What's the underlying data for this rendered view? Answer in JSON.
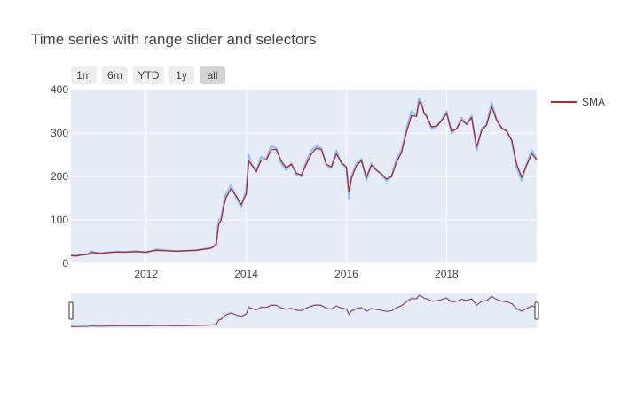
{
  "chart": {
    "title": "Time series with range slider and selectors",
    "buttons": [
      {
        "label": "1m",
        "active": false
      },
      {
        "label": "6m",
        "active": false
      },
      {
        "label": "YTD",
        "active": false
      },
      {
        "label": "1y",
        "active": false
      },
      {
        "label": "all",
        "active": true
      }
    ],
    "legend": [
      {
        "label": "SMA",
        "color": "#b2282f"
      }
    ]
  },
  "colors": {
    "plot_bg": "#e5ecf6",
    "grid": "#ffffff",
    "price_line": "#8cc1f6",
    "sma_line": "#b2282f"
  },
  "chart_data": {
    "type": "line",
    "title": "Time series with range slider and selectors",
    "xlabel": "",
    "ylabel": "",
    "xlim": [
      2010.5,
      2019.8
    ],
    "ylim": [
      0,
      400
    ],
    "x_ticks": [
      "2012",
      "2014",
      "2016",
      "2018"
    ],
    "y_ticks": [
      "0",
      "100",
      "200",
      "300",
      "400"
    ],
    "grid": true,
    "legend_position": "top-right",
    "range_slider": true,
    "x": [
      2010.5,
      2010.6,
      2010.7,
      2010.8,
      2010.85,
      2010.9,
      2011.0,
      2011.1,
      2011.2,
      2011.4,
      2011.6,
      2011.8,
      2012.0,
      2012.2,
      2012.4,
      2012.6,
      2012.8,
      2013.0,
      2013.2,
      2013.3,
      2013.4,
      2013.45,
      2013.5,
      2013.55,
      2013.6,
      2013.7,
      2013.8,
      2013.9,
      2014.0,
      2014.05,
      2014.1,
      2014.2,
      2014.3,
      2014.4,
      2014.5,
      2014.6,
      2014.7,
      2014.8,
      2014.9,
      2015.0,
      2015.1,
      2015.2,
      2015.3,
      2015.4,
      2015.5,
      2015.6,
      2015.7,
      2015.8,
      2015.9,
      2016.0,
      2016.05,
      2016.1,
      2016.2,
      2016.3,
      2016.4,
      2016.5,
      2016.6,
      2016.7,
      2016.8,
      2016.9,
      2017.0,
      2017.1,
      2017.2,
      2017.3,
      2017.4,
      2017.45,
      2017.5,
      2017.55,
      2017.6,
      2017.7,
      2017.8,
      2017.9,
      2018.0,
      2018.1,
      2018.2,
      2018.3,
      2018.4,
      2018.5,
      2018.6,
      2018.7,
      2018.8,
      2018.9,
      2019.0,
      2019.1,
      2019.2,
      2019.3,
      2019.4,
      2019.5,
      2019.6,
      2019.7,
      2019.8
    ],
    "series": [
      {
        "name": "",
        "values": [
          18,
          17,
          20,
          21,
          22,
          28,
          24,
          23,
          25,
          27,
          26,
          28,
          25,
          32,
          30,
          28,
          29,
          30,
          34,
          36,
          45,
          100,
          105,
          140,
          160,
          180,
          150,
          130,
          170,
          250,
          230,
          210,
          245,
          240,
          270,
          265,
          230,
          215,
          230,
          205,
          200,
          235,
          260,
          270,
          265,
          225,
          220,
          260,
          230,
          220,
          150,
          200,
          230,
          240,
          190,
          230,
          215,
          205,
          190,
          200,
          240,
          260,
          310,
          350,
          340,
          380,
          370,
          345,
          340,
          310,
          315,
          330,
          350,
          300,
          310,
          335,
          320,
          340,
          260,
          310,
          320,
          370,
          330,
          310,
          305,
          280,
          220,
          190,
          230,
          260,
          240
        ]
      },
      {
        "name": "SMA",
        "values": [
          18,
          17,
          19,
          20,
          21,
          25,
          24,
          23,
          24,
          26,
          26,
          27,
          26,
          30,
          29,
          28,
          29,
          30,
          33,
          35,
          42,
          90,
          100,
          132,
          152,
          172,
          155,
          135,
          160,
          235,
          228,
          212,
          238,
          238,
          262,
          262,
          235,
          220,
          228,
          208,
          203,
          228,
          252,
          265,
          262,
          228,
          222,
          252,
          232,
          222,
          165,
          195,
          225,
          236,
          198,
          226,
          214,
          206,
          194,
          200,
          232,
          255,
          302,
          340,
          338,
          372,
          365,
          346,
          338,
          314,
          316,
          328,
          345,
          304,
          310,
          330,
          320,
          336,
          268,
          306,
          318,
          360,
          330,
          312,
          304,
          284,
          228,
          198,
          226,
          252,
          238
        ]
      }
    ]
  }
}
